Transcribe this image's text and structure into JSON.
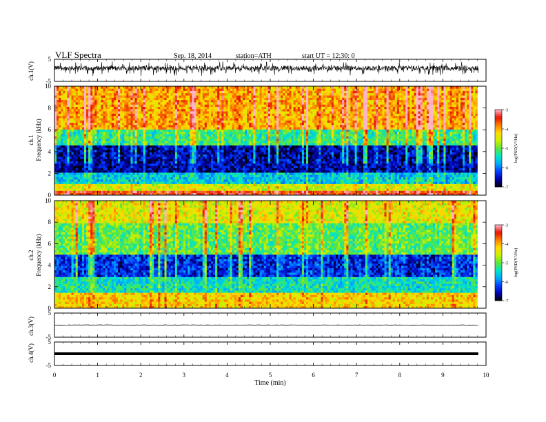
{
  "header": {
    "title": "VLF Spectra",
    "date": "Sep. 18, 2014",
    "station": "station=ATH",
    "start_ut": "start UT =   12:30: 0"
  },
  "xaxis": {
    "label": "Time (min)",
    "ticks": [
      "0",
      "1",
      "2",
      "3",
      "4",
      "5",
      "6",
      "7",
      "8",
      "9",
      "10"
    ]
  },
  "panels": {
    "ch1_wave": {
      "ylabel": "ch.1(V)",
      "ticks": [
        "5",
        "-5"
      ]
    },
    "ch1_spec": {
      "ylabel_1": "ch.1",
      "ylabel_2": "Frequency (kHz)",
      "ticks": [
        "0",
        "2",
        "4",
        "6",
        "8",
        "10"
      ]
    },
    "ch2_spec": {
      "ylabel_1": "ch.2",
      "ylabel_2": "Frequency (kHz)",
      "ticks": [
        "0",
        "2",
        "4",
        "6",
        "8",
        "10"
      ]
    },
    "ch3_wave": {
      "ylabel": "ch.3(V)",
      "ticks": [
        "5",
        "-5"
      ]
    },
    "ch4_wave": {
      "ylabel": "ch.4(V)",
      "ticks": [
        "5",
        "-5"
      ]
    }
  },
  "colorbar": {
    "label": "log(PSD(V²/Hz)",
    "ticks": [
      "-3",
      "-4",
      "-5",
      "-6",
      "-7"
    ]
  },
  "chart_data": [
    {
      "type": "line",
      "title": "ch.1(V)",
      "xlabel": "Time (min)",
      "xlim": [
        0,
        10
      ],
      "ylim": [
        -5,
        5
      ],
      "description": "noisy waveform centered near +1 V, amplitude roughly ±2 V, data ends near 9.8 min"
    },
    {
      "type": "heatmap",
      "title": "ch.1",
      "xlabel": "Time (min)",
      "ylabel": "Frequency (kHz)",
      "xlim": [
        0,
        10
      ],
      "ylim": [
        0,
        10
      ],
      "zlabel": "log(PSD(V²/Hz)",
      "zlim": [
        -7,
        -3
      ],
      "data_end_min": 9.8,
      "bands_khz": [
        {
          "range": [
            0,
            0.5
          ],
          "logpsd": -3.5
        },
        {
          "range": [
            0.5,
            1.0
          ],
          "logpsd": -4.5
        },
        {
          "range": [
            1.0,
            2.0
          ],
          "logpsd": -5.6
        },
        {
          "range": [
            2.0,
            4.5
          ],
          "logpsd": -6.6
        },
        {
          "range": [
            4.5,
            6.0
          ],
          "logpsd": -5.2
        },
        {
          "range": [
            6.0,
            10.0
          ],
          "logpsd": -4.0
        }
      ]
    },
    {
      "type": "heatmap",
      "title": "ch.2",
      "xlabel": "Time (min)",
      "ylabel": "Frequency (kHz)",
      "xlim": [
        0,
        10
      ],
      "ylim": [
        0,
        10
      ],
      "zlabel": "log(PSD(V²/Hz)",
      "zlim": [
        -7,
        -3
      ],
      "data_end_min": 9.8,
      "bands_khz": [
        {
          "range": [
            0,
            1.5
          ],
          "logpsd": -4.2
        },
        {
          "range": [
            1.5,
            3.0
          ],
          "logpsd": -5.4
        },
        {
          "range": [
            3.0,
            5.0
          ],
          "logpsd": -6.3
        },
        {
          "range": [
            5.0,
            8.0
          ],
          "logpsd": -5.0
        },
        {
          "range": [
            8.0,
            10.0
          ],
          "logpsd": -4.4
        }
      ]
    },
    {
      "type": "line",
      "title": "ch.3(V)",
      "xlabel": "Time (min)",
      "xlim": [
        0,
        10
      ],
      "ylim": [
        -5,
        5
      ],
      "description": "nearly flat trace at about 0 V"
    },
    {
      "type": "line",
      "title": "ch.4(V)",
      "xlabel": "Time (min)",
      "xlim": [
        0,
        10
      ],
      "ylim": [
        -5,
        5
      ],
      "description": "thick flat trace at about 0 V"
    }
  ]
}
